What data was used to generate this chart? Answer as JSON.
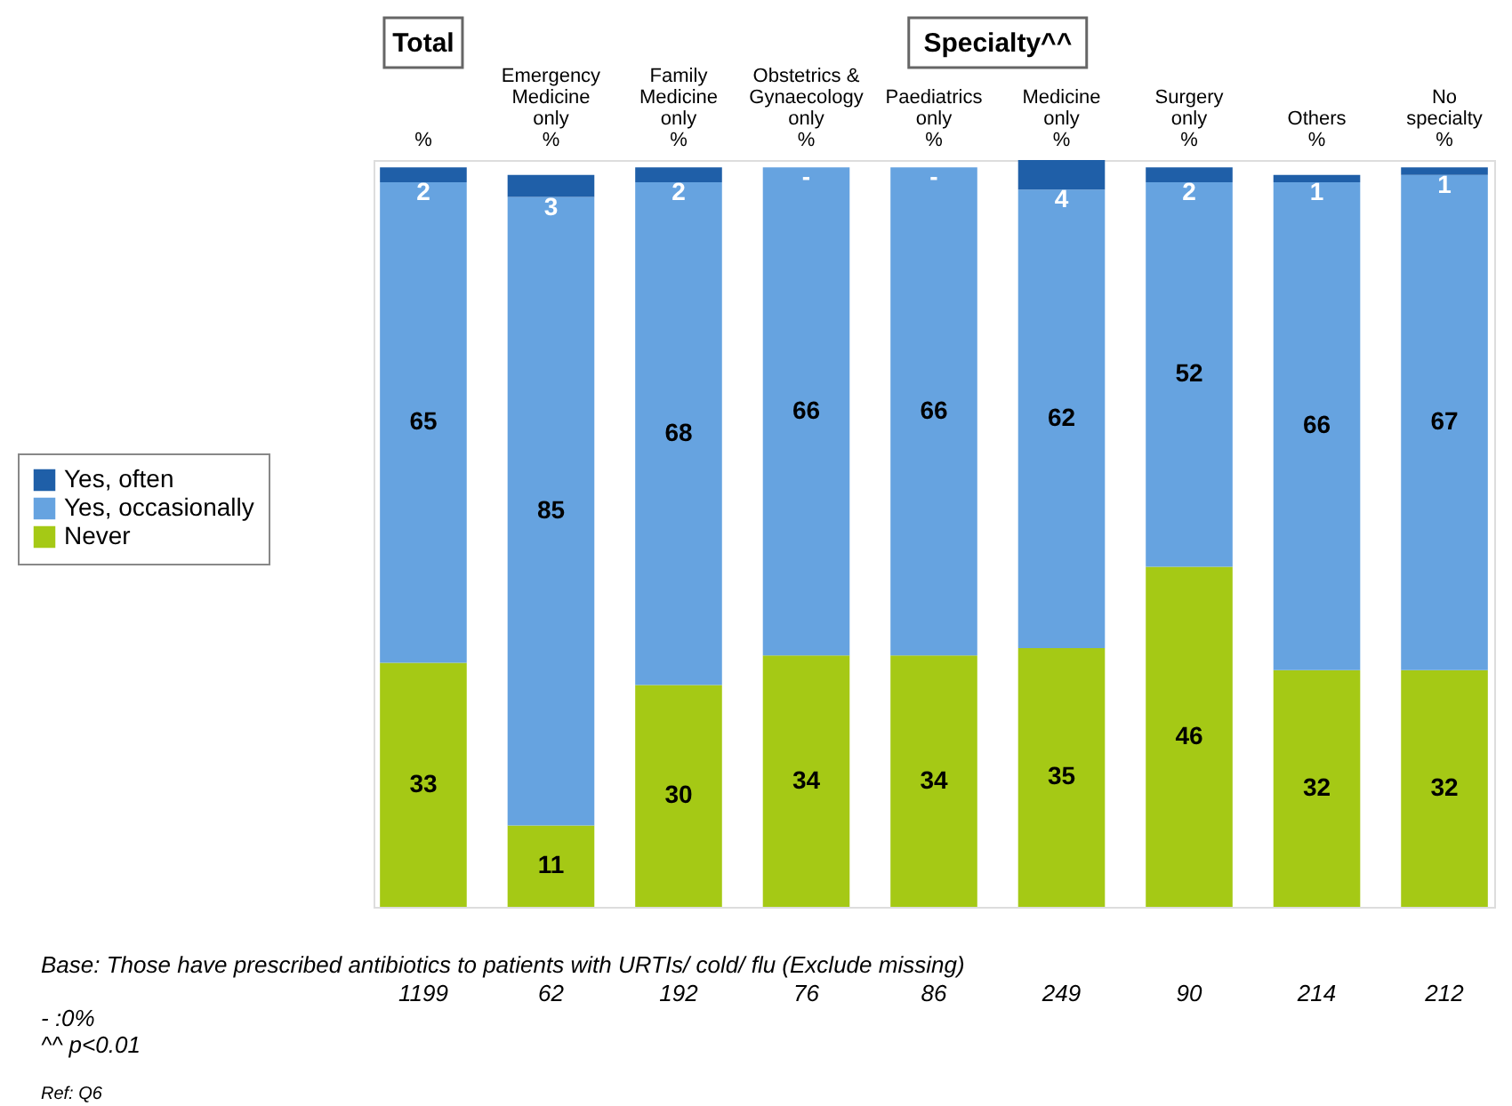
{
  "chart_data": {
    "type": "bar",
    "stacked": true,
    "legend": "left",
    "grid": false,
    "tick_labels": "x",
    "categories": [
      "%",
      "Emergency\nMedicine\nonly\n%",
      "Family\nMedicine\nonly\n%",
      "Obstetrics &\nGynaecology\nonly\n%",
      "Paediatrics\nonly\n%",
      "Medicine\nonly\n%",
      "Surgery\nonly\n%",
      "Others\n%",
      "No\nspecialty\n%"
    ],
    "series": [
      {
        "name": "Never",
        "color": "#a5c915",
        "values": [
          33,
          11,
          30,
          34,
          34,
          35,
          46,
          32,
          32
        ]
      },
      {
        "name": "Yes, occasionally",
        "color": "#66a3e0",
        "values": [
          65,
          85,
          68,
          66,
          66,
          62,
          52,
          66,
          67
        ]
      },
      {
        "name": "Yes, often",
        "color": "#1f5fa8",
        "values": [
          2,
          3,
          2,
          0,
          0,
          4,
          2,
          1,
          1
        ],
        "value_labels": [
          "2",
          "3",
          "2",
          "-",
          "-",
          "4",
          "2",
          "1",
          "1"
        ]
      }
    ],
    "data_labels": true,
    "annotations": [
      "Total",
      "Specialty^^",
      "Base: Those have prescribed antibiotics to patients with URTIs/ cold/ flu (Exclude missing)",
      "- :0%",
      "^^ p<0.01",
      "Ref: Q6",
      "1199",
      "62",
      "192",
      "76",
      "86",
      "249",
      "90",
      "214",
      "212"
    ]
  }
}
